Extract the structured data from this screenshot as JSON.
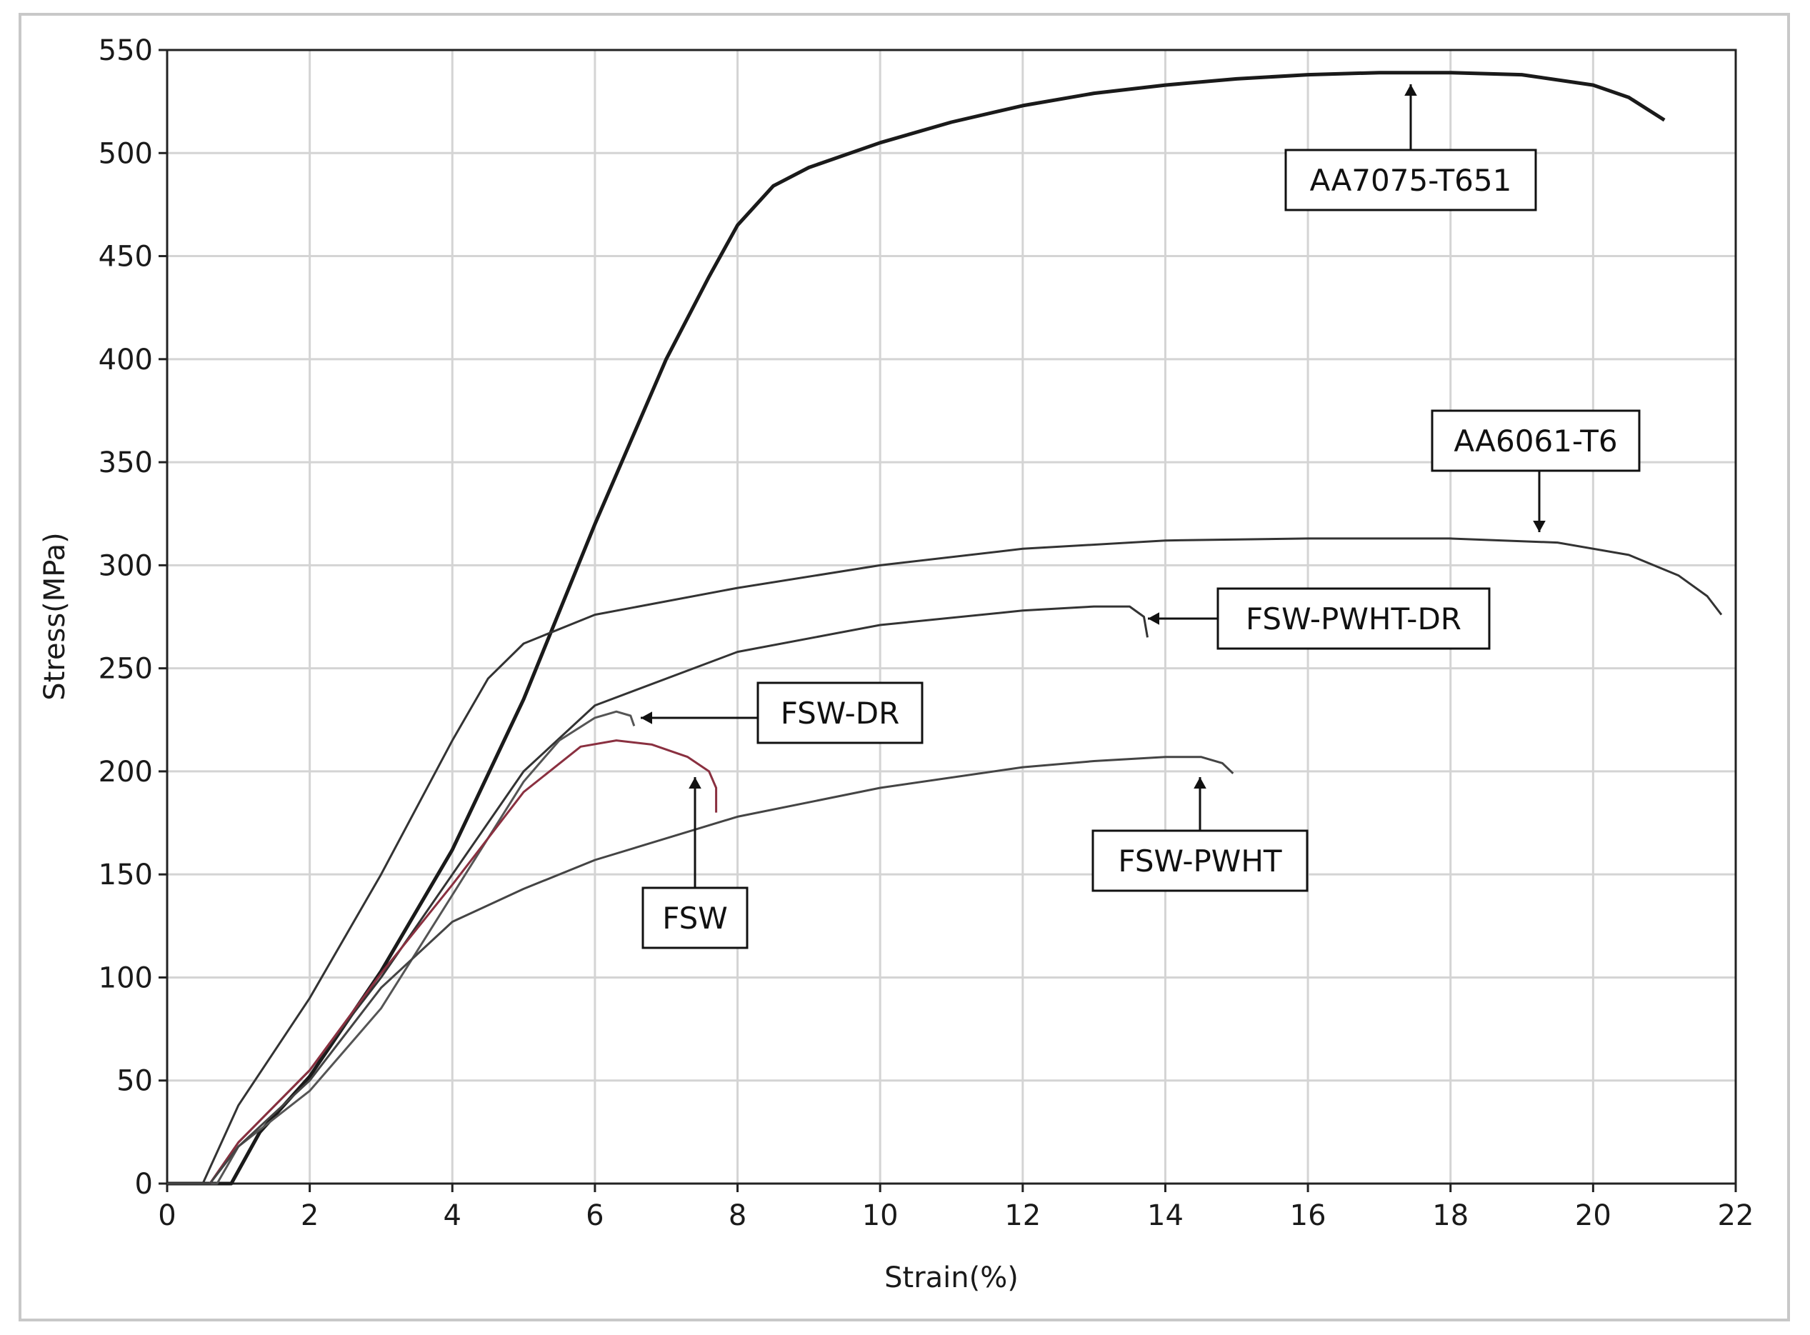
{
  "chart_data": {
    "type": "line",
    "title": "",
    "xlabel": "Strain(%)",
    "ylabel": "Stress(MPa)",
    "xlim": [
      0,
      22
    ],
    "ylim": [
      0,
      550
    ],
    "x_ticks": [
      "0",
      "2",
      "4",
      "6",
      "8",
      "10",
      "12",
      "14",
      "16",
      "18",
      "20",
      "22"
    ],
    "y_ticks": [
      "0",
      "50",
      "100",
      "150",
      "200",
      "250",
      "300",
      "350",
      "400",
      "450",
      "500",
      "550"
    ],
    "grid": true,
    "legend": "none",
    "series": [
      {
        "name": "AA7075-T651",
        "color": "#1a1a1a",
        "x": [
          0,
          0.9,
          1.3,
          2,
          3,
          4,
          5,
          6,
          7,
          7.6,
          8,
          8.5,
          9,
          10,
          11,
          12,
          13,
          14,
          15,
          16,
          17,
          18,
          19,
          20,
          20.5,
          21
        ],
        "y": [
          0,
          0,
          25,
          52,
          103,
          162,
          235,
          320,
          400,
          440,
          465,
          484,
          493,
          505,
          515,
          523,
          529,
          533,
          536,
          538,
          539,
          539,
          538,
          533,
          527,
          516
        ]
      },
      {
        "name": "AA6061-T6",
        "color": "#333333",
        "x": [
          0,
          0.5,
          1,
          2,
          3,
          4,
          4.5,
          5,
          6,
          8,
          10,
          12,
          14,
          16,
          18,
          19.5,
          20.5,
          21.2,
          21.6,
          21.8
        ],
        "y": [
          0,
          0,
          38,
          90,
          150,
          215,
          245,
          262,
          276,
          289,
          300,
          308,
          312,
          313,
          313,
          311,
          305,
          295,
          285,
          276
        ]
      },
      {
        "name": "FSW-PWHT-DR",
        "color": "#333333",
        "x": [
          0,
          0.6,
          1,
          2,
          3,
          4,
          5,
          6,
          8,
          10,
          12,
          13,
          13.5,
          13.7,
          13.75
        ],
        "y": [
          0,
          0,
          20,
          55,
          100,
          150,
          200,
          232,
          258,
          271,
          278,
          280,
          280,
          275,
          265
        ]
      },
      {
        "name": "FSW-DR",
        "color": "#555555",
        "x": [
          0,
          0.7,
          1,
          2,
          3,
          4,
          5,
          5.5,
          6,
          6.3,
          6.5,
          6.55
        ],
        "y": [
          0,
          0,
          18,
          45,
          85,
          140,
          195,
          215,
          226,
          229,
          227,
          222
        ]
      },
      {
        "name": "FSW",
        "color": "#8a3040",
        "x": [
          0,
          0.6,
          1,
          2,
          3,
          4,
          5,
          5.8,
          6.3,
          6.8,
          7.3,
          7.6,
          7.7,
          7.7
        ],
        "y": [
          0,
          0,
          20,
          55,
          102,
          145,
          190,
          212,
          215,
          213,
          207,
          200,
          192,
          180
        ]
      },
      {
        "name": "FSW-PWHT",
        "color": "#444444",
        "x": [
          0,
          0.6,
          1,
          2,
          3,
          4,
          5,
          6,
          8,
          10,
          12,
          13,
          14,
          14.5,
          14.8,
          14.95
        ],
        "y": [
          0,
          0,
          18,
          50,
          95,
          127,
          143,
          157,
          178,
          192,
          202,
          205,
          207,
          207,
          204,
          199
        ]
      }
    ],
    "annotations": [
      {
        "text": "AA7075-T651",
        "series": 0
      },
      {
        "text": "AA6061-T6",
        "series": 1
      },
      {
        "text": "FSW-PWHT-DR",
        "series": 2
      },
      {
        "text": "FSW-DR",
        "series": 3
      },
      {
        "text": "FSW",
        "series": 4
      },
      {
        "text": "FSW-PWHT",
        "series": 5
      }
    ]
  }
}
